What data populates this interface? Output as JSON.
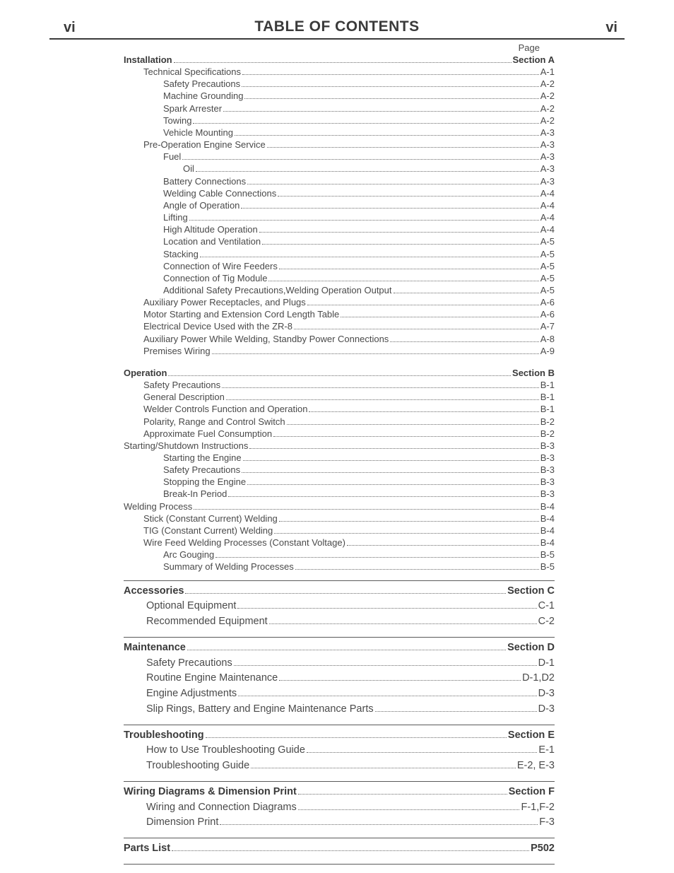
{
  "header": {
    "page_left": "vi",
    "page_right": "vi",
    "title": "TABLE OF CONTENTS",
    "page_label": "Page"
  },
  "styling": {
    "text_color": "#4a4a4a",
    "bold_color": "#3a3a3a",
    "dot_color": "#6a6a6a",
    "rule_color": "#5a5a5a",
    "background": "#ffffff",
    "body_fontsize_small": 13,
    "body_fontsize_large": 14.5,
    "title_fontsize": 21
  },
  "sections": [
    {
      "rule_before": false,
      "large": false,
      "rows": [
        {
          "indent": 0,
          "bold": true,
          "label": "Installation",
          "page": "Section A"
        },
        {
          "indent": 1,
          "bold": false,
          "label": "Technical Specifications",
          "page": "A-1"
        },
        {
          "indent": 2,
          "bold": false,
          "label": "Safety Precautions",
          "page": "A-2"
        },
        {
          "indent": 2,
          "bold": false,
          "label": "Machine Grounding",
          "page": "A-2"
        },
        {
          "indent": 2,
          "bold": false,
          "label": "Spark Arrester",
          "page": "A-2"
        },
        {
          "indent": 2,
          "bold": false,
          "label": "Towing",
          "page": "A-2"
        },
        {
          "indent": 2,
          "bold": false,
          "label": "Vehicle Mounting",
          "page": "A-3"
        },
        {
          "indent": 1,
          "bold": false,
          "label": "Pre-Operation Engine Service",
          "page": "A-3"
        },
        {
          "indent": 2,
          "bold": false,
          "label": "Fuel",
          "page": "A-3"
        },
        {
          "indent": 3,
          "bold": false,
          "label": "Oil",
          "page": "A-3"
        },
        {
          "indent": 2,
          "bold": false,
          "label": "Battery Connections",
          "page": "A-3"
        },
        {
          "indent": 2,
          "bold": false,
          "label": "Welding Cable Connections",
          "page": "A-4"
        },
        {
          "indent": 2,
          "bold": false,
          "label": "Angle of Operation",
          "page": "A-4"
        },
        {
          "indent": 2,
          "bold": false,
          "label": "Lifting",
          "page": "A-4"
        },
        {
          "indent": 2,
          "bold": false,
          "label": "High Altitude Operation",
          "page": "A-4"
        },
        {
          "indent": 2,
          "bold": false,
          "label": "Location and Ventilation",
          "page": "A-5"
        },
        {
          "indent": 2,
          "bold": false,
          "label": "Stacking",
          "page": "A-5"
        },
        {
          "indent": 2,
          "bold": false,
          "label": "Connection of Wire Feeders",
          "page": "A-5"
        },
        {
          "indent": 2,
          "bold": false,
          "label": "Connection of Tig Module",
          "page": "A-5"
        },
        {
          "indent": 2,
          "bold": false,
          "label": "Additional Safety Precautions,Welding Operation Output",
          "page": "A-5"
        },
        {
          "indent": 1,
          "bold": false,
          "label": "Auxiliary Power Receptacles, and Plugs",
          "page": "A-6"
        },
        {
          "indent": 1,
          "bold": false,
          "label": "Motor Starting and Extension Cord Length Table",
          "page": "A-6"
        },
        {
          "indent": 1,
          "bold": false,
          "label": "Electrical Device Used with the ZR-8",
          "page": "A-7"
        },
        {
          "indent": 1,
          "bold": false,
          "label": "Auxiliary Power While  Welding, Standby Power Connections",
          "page": "A-8"
        },
        {
          "indent": 1,
          "bold": false,
          "label": "Premises Wiring",
          "page": "A-9"
        }
      ]
    },
    {
      "rule_before": false,
      "gap_before": true,
      "large": false,
      "rows": [
        {
          "indent": 0,
          "bold": true,
          "label": "Operation",
          "page": "Section B"
        },
        {
          "indent": 1,
          "bold": false,
          "label": "Safety Precautions",
          "page": "B-1"
        },
        {
          "indent": 1,
          "bold": false,
          "label": "General Description",
          "page": "B-1"
        },
        {
          "indent": 1,
          "bold": false,
          "label": "Welder Controls Function and Operation",
          "page": "B-1"
        },
        {
          "indent": 1,
          "bold": false,
          "label": "Polarity, Range and Control Switch",
          "page": "B-2"
        },
        {
          "indent": 1,
          "bold": false,
          "label": "Approximate Fuel Consumption",
          "page": "B-2"
        },
        {
          "indent": 0,
          "bold": false,
          "label": "Starting/Shutdown Instructions",
          "page": "B-3"
        },
        {
          "indent": 2,
          "bold": false,
          "label": "Starting the Engine",
          "page": "B-3"
        },
        {
          "indent": 2,
          "bold": false,
          "label": "Safety Precautions",
          "page": "B-3"
        },
        {
          "indent": 2,
          "bold": false,
          "label": "Stopping the Engine",
          "page": "B-3"
        },
        {
          "indent": 2,
          "bold": false,
          "label": "Break-In Period",
          "page": "B-3"
        },
        {
          "indent": 0,
          "bold": false,
          "label": "Welding Process",
          "page": "B-4"
        },
        {
          "indent": 1,
          "bold": false,
          "label": "Stick (Constant Current) Welding",
          "page": "B-4"
        },
        {
          "indent": 1,
          "bold": false,
          "label": "TIG (Constant Current) Welding ",
          "page": "B-4"
        },
        {
          "indent": 1,
          "bold": false,
          "label": "Wire Feed Welding Processes  (Constant Voltage)",
          "page": "B-4"
        },
        {
          "indent": 2,
          "bold": false,
          "label": "Arc Gouging",
          "page": "B-5"
        },
        {
          "indent": 2,
          "bold": false,
          "label": "Summary of Welding Processes",
          "page": "B-5"
        }
      ]
    },
    {
      "rule_before": true,
      "large": true,
      "rows": [
        {
          "indent": 0,
          "bold": true,
          "label": "Accessories",
          "page": "Section C"
        },
        {
          "indent": 1,
          "bold": false,
          "label": "Optional Equipment",
          "page": "C-1"
        },
        {
          "indent": 1,
          "bold": false,
          "label": "Recommended Equipment",
          "page": "C-2"
        }
      ]
    },
    {
      "rule_before": true,
      "large": true,
      "rows": [
        {
          "indent": 0,
          "bold": true,
          "label": "Maintenance",
          "page": "Section D"
        },
        {
          "indent": 1,
          "bold": false,
          "label": "Safety Precautions",
          "page": "D-1"
        },
        {
          "indent": 1,
          "bold": false,
          "label": "Routine Engine Maintenance",
          "page": "D-1,D2"
        },
        {
          "indent": 1,
          "bold": false,
          "label": "Engine Adjustments",
          "page": "D-3"
        },
        {
          "indent": 1,
          "bold": false,
          "label": "Slip Rings, Battery and Engine Maintenance Parts",
          "page": "D-3"
        }
      ]
    },
    {
      "rule_before": true,
      "large": true,
      "rows": [
        {
          "indent": 0,
          "bold": true,
          "label": "Troubleshooting",
          "page": "Section E"
        },
        {
          "indent": 1,
          "bold": false,
          "label": "How to Use Troubleshooting Guide",
          "page": "E-1"
        },
        {
          "indent": 1,
          "bold": false,
          "label": "Troubleshooting Guide",
          "page": "E-2, E-3"
        }
      ]
    },
    {
      "rule_before": true,
      "large": true,
      "rows": [
        {
          "indent": 0,
          "bold": true,
          "label": "Wiring Diagrams & Dimension Print",
          "page": "Section F"
        },
        {
          "indent": 1,
          "bold": false,
          "label": "Wiring and Connection Diagrams",
          "page": "F-1,F-2"
        },
        {
          "indent": 1,
          "bold": false,
          "label": "Dimension Print",
          "page": "F-3"
        }
      ]
    },
    {
      "rule_before": true,
      "large": true,
      "rows": [
        {
          "indent": 0,
          "bold": true,
          "label": "Parts List",
          "page": "P502"
        }
      ],
      "rule_after": true
    }
  ]
}
